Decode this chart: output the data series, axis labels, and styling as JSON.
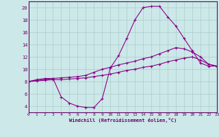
{
  "xlabel": "Windchill (Refroidissement éolien,°C)",
  "bg_color": "#cce8e8",
  "line_color": "#880088",
  "grid_color": "#aacccc",
  "axis_color": "#660066",
  "text_color": "#660066",
  "xlim": [
    0,
    23
  ],
  "ylim": [
    3,
    21
  ],
  "xticks": [
    0,
    1,
    2,
    3,
    4,
    5,
    6,
    7,
    8,
    9,
    10,
    11,
    12,
    13,
    14,
    15,
    16,
    17,
    18,
    19,
    20,
    21,
    22,
    23
  ],
  "yticks": [
    4,
    6,
    8,
    10,
    12,
    14,
    16,
    18,
    20
  ],
  "line1_x": [
    0,
    1,
    2,
    3,
    4,
    5,
    6,
    7,
    8,
    9,
    10,
    11,
    12,
    13,
    14,
    15,
    16,
    17,
    18,
    19,
    20,
    21,
    22,
    23
  ],
  "line1_y": [
    8.0,
    8.3,
    8.5,
    8.5,
    5.5,
    4.5,
    4.0,
    3.8,
    3.8,
    5.2,
    10.2,
    12.2,
    15.0,
    18.0,
    20.0,
    20.2,
    20.2,
    18.5,
    17.0,
    15.0,
    13.0,
    11.0,
    10.5,
    10.5
  ],
  "line2_x": [
    0,
    1,
    2,
    3,
    4,
    5,
    6,
    7,
    8,
    9,
    10,
    11,
    12,
    13,
    14,
    15,
    16,
    17,
    18,
    19,
    20,
    21,
    22,
    23
  ],
  "line2_y": [
    8.0,
    8.2,
    8.3,
    8.5,
    8.6,
    8.7,
    8.8,
    9.0,
    9.5,
    10.0,
    10.3,
    10.7,
    11.0,
    11.3,
    11.7,
    12.0,
    12.5,
    13.0,
    13.5,
    13.3,
    12.8,
    12.0,
    10.8,
    10.5
  ],
  "line3_x": [
    0,
    1,
    2,
    3,
    4,
    5,
    6,
    7,
    8,
    9,
    10,
    11,
    12,
    13,
    14,
    15,
    16,
    17,
    18,
    19,
    20,
    21,
    22,
    23
  ],
  "line3_y": [
    8.0,
    8.1,
    8.2,
    8.3,
    8.3,
    8.4,
    8.5,
    8.6,
    8.8,
    9.0,
    9.2,
    9.5,
    9.8,
    10.0,
    10.3,
    10.5,
    10.8,
    11.2,
    11.5,
    11.8,
    12.0,
    11.5,
    10.8,
    10.5
  ]
}
